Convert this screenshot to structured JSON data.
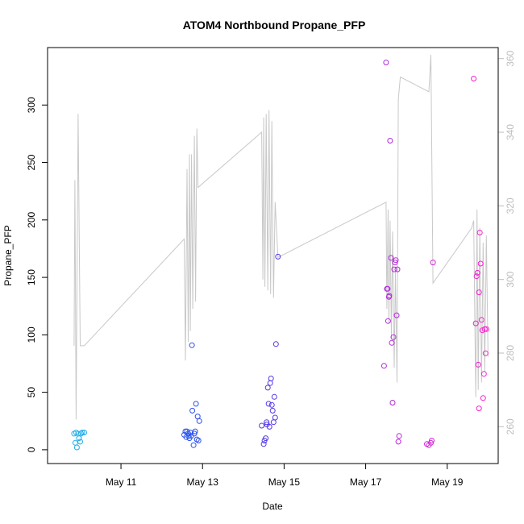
{
  "chart_data": {
    "type": "scatter",
    "title": "ATOM4 Northbound Propane_PFP",
    "xlabel": "Date",
    "ylabel": "Propane_PFP",
    "x_ticks": [
      {
        "day": 11,
        "label": "May 11"
      },
      {
        "day": 13,
        "label": "May 13"
      },
      {
        "day": 15,
        "label": "May 15"
      },
      {
        "day": 17,
        "label": "May 17"
      },
      {
        "day": 19,
        "label": "May 19"
      }
    ],
    "xlim_days": [
      9.2,
      20.25
    ],
    "ylim": [
      -12,
      350
    ],
    "y_ticks": [
      0,
      50,
      100,
      150,
      200,
      250,
      300
    ],
    "y2lim": [
      250,
      363
    ],
    "y2_ticks": [
      260,
      280,
      300,
      320,
      340,
      360
    ],
    "grid": false,
    "legend": "none",
    "colors": {
      "line": "#c8c8c8",
      "axis": "#000000",
      "right_axis": "#bdbdbd",
      "points_start": "#22b4e8",
      "points_mid": "#2b3cf0",
      "points_end": "#ff1fcf"
    },
    "points": [
      {
        "d": 9.85,
        "v": 14
      },
      {
        "d": 9.9,
        "v": 15
      },
      {
        "d": 9.95,
        "v": 14
      },
      {
        "d": 9.88,
        "v": 6
      },
      {
        "d": 9.92,
        "v": 2
      },
      {
        "d": 10.0,
        "v": 7
      },
      {
        "d": 10.05,
        "v": 15
      },
      {
        "d": 10.1,
        "v": 15
      },
      {
        "d": 9.97,
        "v": 10
      },
      {
        "d": 10.02,
        "v": 14
      },
      {
        "d": 12.55,
        "v": 13
      },
      {
        "d": 12.6,
        "v": 11
      },
      {
        "d": 12.62,
        "v": 16
      },
      {
        "d": 12.65,
        "v": 14
      },
      {
        "d": 12.68,
        "v": 10
      },
      {
        "d": 12.7,
        "v": 15
      },
      {
        "d": 12.72,
        "v": 12
      },
      {
        "d": 12.75,
        "v": 34
      },
      {
        "d": 12.78,
        "v": 4
      },
      {
        "d": 12.8,
        "v": 14
      },
      {
        "d": 12.82,
        "v": 16
      },
      {
        "d": 12.84,
        "v": 40
      },
      {
        "d": 12.86,
        "v": 9
      },
      {
        "d": 12.88,
        "v": 29
      },
      {
        "d": 12.9,
        "v": 8
      },
      {
        "d": 12.92,
        "v": 25
      },
      {
        "d": 12.58,
        "v": 16
      },
      {
        "d": 12.66,
        "v": 12
      },
      {
        "d": 12.74,
        "v": 91
      },
      {
        "d": 14.45,
        "v": 21
      },
      {
        "d": 14.5,
        "v": 5
      },
      {
        "d": 14.52,
        "v": 8
      },
      {
        "d": 14.55,
        "v": 10
      },
      {
        "d": 14.57,
        "v": 24
      },
      {
        "d": 14.6,
        "v": 54
      },
      {
        "d": 14.62,
        "v": 40
      },
      {
        "d": 14.64,
        "v": 20
      },
      {
        "d": 14.66,
        "v": 58
      },
      {
        "d": 14.68,
        "v": 62
      },
      {
        "d": 14.7,
        "v": 39
      },
      {
        "d": 14.72,
        "v": 34
      },
      {
        "d": 14.74,
        "v": 24
      },
      {
        "d": 14.76,
        "v": 46
      },
      {
        "d": 14.78,
        "v": 28
      },
      {
        "d": 14.8,
        "v": 92
      },
      {
        "d": 14.85,
        "v": 168
      },
      {
        "d": 14.58,
        "v": 22
      },
      {
        "d": 17.45,
        "v": 73
      },
      {
        "d": 17.5,
        "v": 337
      },
      {
        "d": 17.52,
        "v": 140
      },
      {
        "d": 17.55,
        "v": 112
      },
      {
        "d": 17.57,
        "v": 133
      },
      {
        "d": 17.6,
        "v": 269
      },
      {
        "d": 17.62,
        "v": 167
      },
      {
        "d": 17.64,
        "v": 93
      },
      {
        "d": 17.66,
        "v": 41
      },
      {
        "d": 17.68,
        "v": 98
      },
      {
        "d": 17.7,
        "v": 157
      },
      {
        "d": 17.72,
        "v": 163
      },
      {
        "d": 17.74,
        "v": 165
      },
      {
        "d": 17.76,
        "v": 117
      },
      {
        "d": 17.78,
        "v": 157
      },
      {
        "d": 17.8,
        "v": 7
      },
      {
        "d": 17.82,
        "v": 12
      },
      {
        "d": 17.54,
        "v": 140
      },
      {
        "d": 17.58,
        "v": 134
      },
      {
        "d": 18.5,
        "v": 5
      },
      {
        "d": 18.55,
        "v": 4
      },
      {
        "d": 18.6,
        "v": 6
      },
      {
        "d": 18.62,
        "v": 8
      },
      {
        "d": 18.65,
        "v": 163
      },
      {
        "d": 19.65,
        "v": 323
      },
      {
        "d": 19.7,
        "v": 110
      },
      {
        "d": 19.72,
        "v": 151
      },
      {
        "d": 19.74,
        "v": 154
      },
      {
        "d": 19.76,
        "v": 74
      },
      {
        "d": 19.78,
        "v": 137
      },
      {
        "d": 19.8,
        "v": 189
      },
      {
        "d": 19.82,
        "v": 162
      },
      {
        "d": 19.84,
        "v": 113
      },
      {
        "d": 19.86,
        "v": 104
      },
      {
        "d": 19.88,
        "v": 45
      },
      {
        "d": 19.9,
        "v": 66
      },
      {
        "d": 19.92,
        "v": 105
      },
      {
        "d": 19.94,
        "v": 84
      },
      {
        "d": 19.96,
        "v": 105
      },
      {
        "d": 19.78,
        "v": 36
      }
    ],
    "line": [
      {
        "d": 9.85,
        "v": 282
      },
      {
        "d": 9.87,
        "v": 327
      },
      {
        "d": 9.9,
        "v": 262
      },
      {
        "d": 9.95,
        "v": 345
      },
      {
        "d": 10.0,
        "v": 282
      },
      {
        "d": 10.1,
        "v": 282
      },
      {
        "d": 12.55,
        "v": 311
      },
      {
        "d": 12.58,
        "v": 278
      },
      {
        "d": 12.62,
        "v": 330
      },
      {
        "d": 12.65,
        "v": 283
      },
      {
        "d": 12.68,
        "v": 334
      },
      {
        "d": 12.7,
        "v": 286
      },
      {
        "d": 12.73,
        "v": 334
      },
      {
        "d": 12.76,
        "v": 292
      },
      {
        "d": 12.8,
        "v": 339
      },
      {
        "d": 12.83,
        "v": 294
      },
      {
        "d": 12.86,
        "v": 341
      },
      {
        "d": 12.89,
        "v": 325
      },
      {
        "d": 14.45,
        "v": 340
      },
      {
        "d": 14.48,
        "v": 300
      },
      {
        "d": 14.5,
        "v": 344
      },
      {
        "d": 14.53,
        "v": 298
      },
      {
        "d": 14.56,
        "v": 345
      },
      {
        "d": 14.6,
        "v": 297
      },
      {
        "d": 14.63,
        "v": 346
      },
      {
        "d": 14.67,
        "v": 296
      },
      {
        "d": 14.7,
        "v": 343
      },
      {
        "d": 14.74,
        "v": 295
      },
      {
        "d": 14.78,
        "v": 321
      },
      {
        "d": 14.85,
        "v": 306
      },
      {
        "d": 17.5,
        "v": 321
      },
      {
        "d": 17.52,
        "v": 292
      },
      {
        "d": 17.55,
        "v": 319
      },
      {
        "d": 17.57,
        "v": 288
      },
      {
        "d": 17.6,
        "v": 316
      },
      {
        "d": 17.63,
        "v": 284
      },
      {
        "d": 17.66,
        "v": 313
      },
      {
        "d": 17.7,
        "v": 276
      },
      {
        "d": 17.73,
        "v": 302
      },
      {
        "d": 17.77,
        "v": 272
      },
      {
        "d": 17.8,
        "v": 349
      },
      {
        "d": 17.85,
        "v": 355
      },
      {
        "d": 18.55,
        "v": 351
      },
      {
        "d": 18.6,
        "v": 361
      },
      {
        "d": 18.65,
        "v": 299
      },
      {
        "d": 19.6,
        "v": 314
      },
      {
        "d": 19.65,
        "v": 316
      },
      {
        "d": 19.68,
        "v": 285
      },
      {
        "d": 19.7,
        "v": 268
      },
      {
        "d": 19.73,
        "v": 319
      },
      {
        "d": 19.76,
        "v": 270
      },
      {
        "d": 19.8,
        "v": 314
      },
      {
        "d": 19.84,
        "v": 272
      },
      {
        "d": 19.88,
        "v": 310
      },
      {
        "d": 19.92,
        "v": 275
      },
      {
        "d": 19.96,
        "v": 312
      },
      {
        "d": 20.0,
        "v": 279
      }
    ]
  }
}
